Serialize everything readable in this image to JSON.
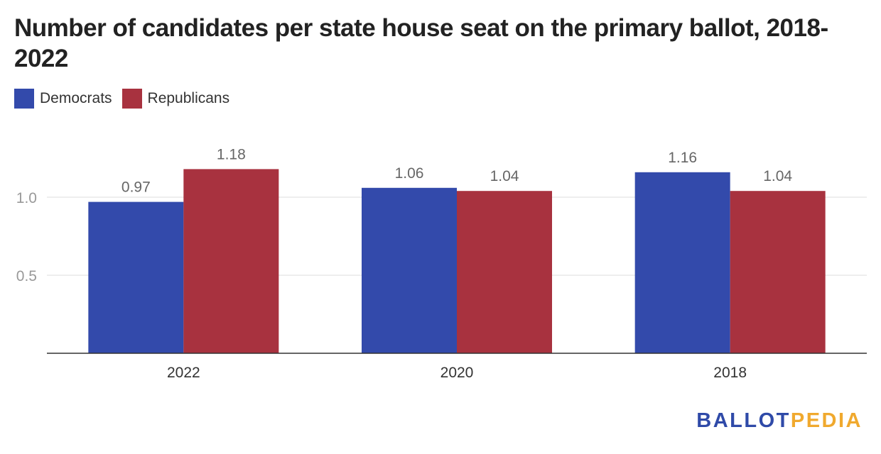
{
  "title": "Number of candidates per state house seat on the primary ballot, 2018-2022",
  "legend": [
    {
      "label": "Democrats",
      "color": "#334aab"
    },
    {
      "label": "Republicans",
      "color": "#a8323f"
    }
  ],
  "logo": {
    "part1": "BALLOT",
    "part2": "PEDIA"
  },
  "chart_data": {
    "type": "bar",
    "title": "Number of candidates per state house seat on the primary ballot, 2018-2022",
    "categories": [
      "2022",
      "2020",
      "2018"
    ],
    "series": [
      {
        "name": "Democrats",
        "color": "#334aab",
        "values": [
          0.97,
          1.06,
          1.16
        ],
        "labels": [
          "0.97",
          "1.06",
          "1.16"
        ]
      },
      {
        "name": "Republicans",
        "color": "#a8323f",
        "values": [
          1.18,
          1.04,
          1.04
        ],
        "labels": [
          "1.18",
          "1.04",
          "1.04"
        ]
      }
    ],
    "yticks": [
      0.5,
      1.0
    ],
    "ytick_labels": [
      "0.5",
      "1.0"
    ],
    "ylim": [
      0,
      1.3
    ],
    "grid": true,
    "legend_position": "top-left"
  }
}
